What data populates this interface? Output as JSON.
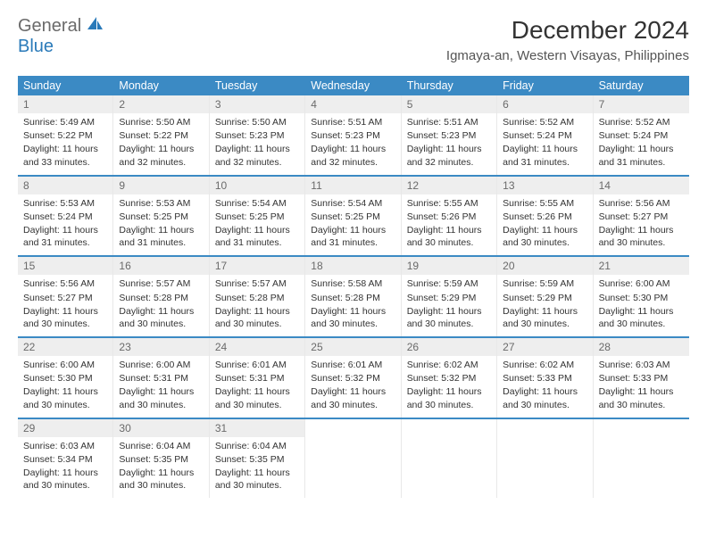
{
  "logo": {
    "text1": "General",
    "text2": "Blue",
    "brand_color": "#2a7ab9",
    "gray_color": "#6a6a6a"
  },
  "header": {
    "month_title": "December 2024",
    "location": "Igmaya-an, Western Visayas, Philippines"
  },
  "colors": {
    "dow_bg": "#3b8ac4",
    "daynum_bg": "#eeeeee",
    "week_border": "#3b8ac4"
  },
  "days_of_week": [
    "Sunday",
    "Monday",
    "Tuesday",
    "Wednesday",
    "Thursday",
    "Friday",
    "Saturday"
  ],
  "days": [
    {
      "n": "1",
      "sunrise": "Sunrise: 5:49 AM",
      "sunset": "Sunset: 5:22 PM",
      "daylight": "Daylight: 11 hours and 33 minutes."
    },
    {
      "n": "2",
      "sunrise": "Sunrise: 5:50 AM",
      "sunset": "Sunset: 5:22 PM",
      "daylight": "Daylight: 11 hours and 32 minutes."
    },
    {
      "n": "3",
      "sunrise": "Sunrise: 5:50 AM",
      "sunset": "Sunset: 5:23 PM",
      "daylight": "Daylight: 11 hours and 32 minutes."
    },
    {
      "n": "4",
      "sunrise": "Sunrise: 5:51 AM",
      "sunset": "Sunset: 5:23 PM",
      "daylight": "Daylight: 11 hours and 32 minutes."
    },
    {
      "n": "5",
      "sunrise": "Sunrise: 5:51 AM",
      "sunset": "Sunset: 5:23 PM",
      "daylight": "Daylight: 11 hours and 32 minutes."
    },
    {
      "n": "6",
      "sunrise": "Sunrise: 5:52 AM",
      "sunset": "Sunset: 5:24 PM",
      "daylight": "Daylight: 11 hours and 31 minutes."
    },
    {
      "n": "7",
      "sunrise": "Sunrise: 5:52 AM",
      "sunset": "Sunset: 5:24 PM",
      "daylight": "Daylight: 11 hours and 31 minutes."
    },
    {
      "n": "8",
      "sunrise": "Sunrise: 5:53 AM",
      "sunset": "Sunset: 5:24 PM",
      "daylight": "Daylight: 11 hours and 31 minutes."
    },
    {
      "n": "9",
      "sunrise": "Sunrise: 5:53 AM",
      "sunset": "Sunset: 5:25 PM",
      "daylight": "Daylight: 11 hours and 31 minutes."
    },
    {
      "n": "10",
      "sunrise": "Sunrise: 5:54 AM",
      "sunset": "Sunset: 5:25 PM",
      "daylight": "Daylight: 11 hours and 31 minutes."
    },
    {
      "n": "11",
      "sunrise": "Sunrise: 5:54 AM",
      "sunset": "Sunset: 5:25 PM",
      "daylight": "Daylight: 11 hours and 31 minutes."
    },
    {
      "n": "12",
      "sunrise": "Sunrise: 5:55 AM",
      "sunset": "Sunset: 5:26 PM",
      "daylight": "Daylight: 11 hours and 30 minutes."
    },
    {
      "n": "13",
      "sunrise": "Sunrise: 5:55 AM",
      "sunset": "Sunset: 5:26 PM",
      "daylight": "Daylight: 11 hours and 30 minutes."
    },
    {
      "n": "14",
      "sunrise": "Sunrise: 5:56 AM",
      "sunset": "Sunset: 5:27 PM",
      "daylight": "Daylight: 11 hours and 30 minutes."
    },
    {
      "n": "15",
      "sunrise": "Sunrise: 5:56 AM",
      "sunset": "Sunset: 5:27 PM",
      "daylight": "Daylight: 11 hours and 30 minutes."
    },
    {
      "n": "16",
      "sunrise": "Sunrise: 5:57 AM",
      "sunset": "Sunset: 5:28 PM",
      "daylight": "Daylight: 11 hours and 30 minutes."
    },
    {
      "n": "17",
      "sunrise": "Sunrise: 5:57 AM",
      "sunset": "Sunset: 5:28 PM",
      "daylight": "Daylight: 11 hours and 30 minutes."
    },
    {
      "n": "18",
      "sunrise": "Sunrise: 5:58 AM",
      "sunset": "Sunset: 5:28 PM",
      "daylight": "Daylight: 11 hours and 30 minutes."
    },
    {
      "n": "19",
      "sunrise": "Sunrise: 5:59 AM",
      "sunset": "Sunset: 5:29 PM",
      "daylight": "Daylight: 11 hours and 30 minutes."
    },
    {
      "n": "20",
      "sunrise": "Sunrise: 5:59 AM",
      "sunset": "Sunset: 5:29 PM",
      "daylight": "Daylight: 11 hours and 30 minutes."
    },
    {
      "n": "21",
      "sunrise": "Sunrise: 6:00 AM",
      "sunset": "Sunset: 5:30 PM",
      "daylight": "Daylight: 11 hours and 30 minutes."
    },
    {
      "n": "22",
      "sunrise": "Sunrise: 6:00 AM",
      "sunset": "Sunset: 5:30 PM",
      "daylight": "Daylight: 11 hours and 30 minutes."
    },
    {
      "n": "23",
      "sunrise": "Sunrise: 6:00 AM",
      "sunset": "Sunset: 5:31 PM",
      "daylight": "Daylight: 11 hours and 30 minutes."
    },
    {
      "n": "24",
      "sunrise": "Sunrise: 6:01 AM",
      "sunset": "Sunset: 5:31 PM",
      "daylight": "Daylight: 11 hours and 30 minutes."
    },
    {
      "n": "25",
      "sunrise": "Sunrise: 6:01 AM",
      "sunset": "Sunset: 5:32 PM",
      "daylight": "Daylight: 11 hours and 30 minutes."
    },
    {
      "n": "26",
      "sunrise": "Sunrise: 6:02 AM",
      "sunset": "Sunset: 5:32 PM",
      "daylight": "Daylight: 11 hours and 30 minutes."
    },
    {
      "n": "27",
      "sunrise": "Sunrise: 6:02 AM",
      "sunset": "Sunset: 5:33 PM",
      "daylight": "Daylight: 11 hours and 30 minutes."
    },
    {
      "n": "28",
      "sunrise": "Sunrise: 6:03 AM",
      "sunset": "Sunset: 5:33 PM",
      "daylight": "Daylight: 11 hours and 30 minutes."
    },
    {
      "n": "29",
      "sunrise": "Sunrise: 6:03 AM",
      "sunset": "Sunset: 5:34 PM",
      "daylight": "Daylight: 11 hours and 30 minutes."
    },
    {
      "n": "30",
      "sunrise": "Sunrise: 6:04 AM",
      "sunset": "Sunset: 5:35 PM",
      "daylight": "Daylight: 11 hours and 30 minutes."
    },
    {
      "n": "31",
      "sunrise": "Sunrise: 6:04 AM",
      "sunset": "Sunset: 5:35 PM",
      "daylight": "Daylight: 11 hours and 30 minutes."
    }
  ]
}
